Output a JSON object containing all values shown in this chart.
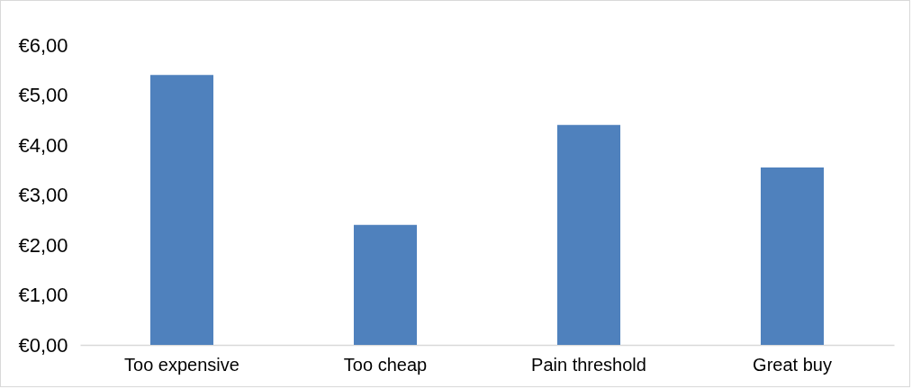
{
  "chart_data": {
    "type": "bar",
    "categories": [
      "Too expensive",
      "Too cheap",
      "Pain threshold",
      "Great buy"
    ],
    "values": [
      5.4,
      2.4,
      4.4,
      3.55
    ],
    "color": "#4f81bd",
    "ylim": [
      0,
      6
    ],
    "yticks": [
      {
        "value": 0,
        "label": "€0,00"
      },
      {
        "value": 1,
        "label": "€1,00"
      },
      {
        "value": 2,
        "label": "€2,00"
      },
      {
        "value": 3,
        "label": "€3,00"
      },
      {
        "value": 4,
        "label": "€4,00"
      },
      {
        "value": 5,
        "label": "€5,00"
      },
      {
        "value": 6,
        "label": "€6,00"
      }
    ],
    "grid": false
  }
}
